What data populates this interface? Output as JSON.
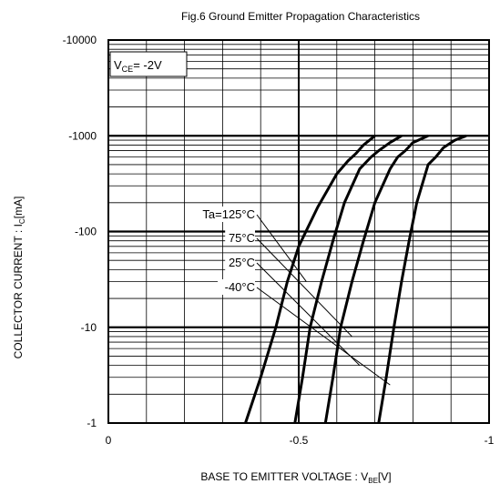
{
  "chart_data": {
    "type": "line",
    "title": "Fig.6 Ground Emitter Propagation Characteristics",
    "xlabel_main": "BASE TO EMITTER VOLTAGE : V",
    "xlabel_sub": "BE",
    "xlabel_end": "[V]",
    "ylabel_main": "COLLECTOR CURRENT : I",
    "ylabel_sub": "C",
    "ylabel_end": "[mA]",
    "x_scale": "linear",
    "y_scale": "log",
    "xlim": [
      0,
      -1
    ],
    "ylim": [
      -1,
      -10000
    ],
    "grid": true,
    "x_ticks": [
      "0",
      "-0.5",
      "-1"
    ],
    "y_ticks": [
      "-1",
      "-10",
      "-100",
      "-1000",
      "-10000"
    ],
    "condition_main": "V",
    "condition_sub": "CE",
    "condition_end": "= -2V",
    "series": [
      {
        "name": "Ta=125°C",
        "x": [
          -0.36,
          -0.4,
          -0.44,
          -0.47,
          -0.5,
          -0.55,
          -0.6,
          -0.63,
          -0.65,
          -0.67,
          -0.7
        ],
        "y": [
          -1,
          -3,
          -10,
          -30,
          -70,
          -180,
          -400,
          -550,
          -650,
          -800,
          -1000
        ]
      },
      {
        "name": "75°C",
        "x": [
          -0.49,
          -0.51,
          -0.53,
          -0.56,
          -0.59,
          -0.62,
          -0.66,
          -0.69,
          -0.71,
          -0.74,
          -0.77
        ],
        "y": [
          -1,
          -3,
          -10,
          -30,
          -80,
          -200,
          -450,
          -600,
          -700,
          -850,
          -1000
        ]
      },
      {
        "name": "25°C",
        "x": [
          -0.57,
          -0.59,
          -0.61,
          -0.64,
          -0.67,
          -0.7,
          -0.74,
          -0.76,
          -0.78,
          -0.8,
          -0.84
        ],
        "y": [
          -1,
          -3,
          -10,
          -30,
          -80,
          -200,
          -450,
          -600,
          -700,
          -850,
          -1000
        ]
      },
      {
        "name": "-40°C",
        "x": [
          -0.71,
          -0.73,
          -0.75,
          -0.77,
          -0.79,
          -0.81,
          -0.84,
          -0.86,
          -0.88,
          -0.91,
          -0.94
        ],
        "y": [
          -1,
          -3,
          -10,
          -30,
          -80,
          -200,
          -500,
          -600,
          -750,
          -900,
          -1000
        ]
      }
    ],
    "annotation_targets": [
      {
        "label": "Ta=125°C",
        "x": -0.52,
        "y": -30
      },
      {
        "label": "75°C",
        "x": -0.64,
        "y": -8
      },
      {
        "label": "25°C",
        "x": -0.66,
        "y": -4
      },
      {
        "label": "-40°C",
        "x": -0.74,
        "y": -2.5
      }
    ]
  }
}
